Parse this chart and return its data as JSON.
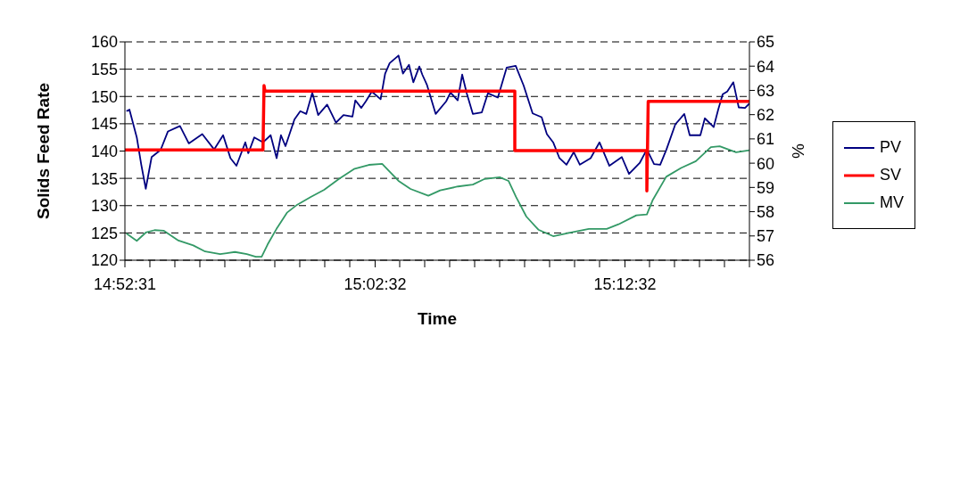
{
  "chart_data": {
    "type": "line",
    "xlabel": "Time",
    "ylabel": "Solids Feed Rate",
    "y2label": "%",
    "xlim": [
      14.875278,
      15.291944
    ],
    "xticks": [
      {
        "value": 14.875278,
        "label": "14:52:31"
      },
      {
        "value": 14.891944,
        "label": null
      },
      {
        "value": 14.908611,
        "label": null
      },
      {
        "value": 14.925278,
        "label": null
      },
      {
        "value": 14.941944,
        "label": null
      },
      {
        "value": 14.958611,
        "label": null
      },
      {
        "value": 14.975278,
        "label": null
      },
      {
        "value": 14.991944,
        "label": null
      },
      {
        "value": 15.008611,
        "label": null
      },
      {
        "value": 15.025278,
        "label": null
      },
      {
        "value": 15.042222,
        "label": "15:02:32"
      },
      {
        "value": 15.058611,
        "label": null
      },
      {
        "value": 15.075278,
        "label": null
      },
      {
        "value": 15.091944,
        "label": null
      },
      {
        "value": 15.108611,
        "label": null
      },
      {
        "value": 15.125278,
        "label": null
      },
      {
        "value": 15.141944,
        "label": null
      },
      {
        "value": 15.158611,
        "label": null
      },
      {
        "value": 15.175278,
        "label": null
      },
      {
        "value": 15.191944,
        "label": null
      },
      {
        "value": 15.208889,
        "label": "15:12:32"
      },
      {
        "value": 15.225278,
        "label": null
      },
      {
        "value": 15.241944,
        "label": null
      },
      {
        "value": 15.258611,
        "label": null
      },
      {
        "value": 15.275278,
        "label": null
      },
      {
        "value": 15.291944,
        "label": null
      }
    ],
    "ylim": [
      120,
      160
    ],
    "yticks": [
      120,
      125,
      130,
      135,
      140,
      145,
      150,
      155,
      160
    ],
    "y2lim": [
      56,
      65
    ],
    "y2ticks": [
      56,
      57,
      58,
      59,
      60,
      61,
      62,
      63,
      64,
      65
    ],
    "grid": "y",
    "legend": "right",
    "marker": "none",
    "line_style": "solid",
    "series": [
      {
        "name": "PV",
        "color": "#000080",
        "x": [
          14.8763,
          14.8783,
          14.8832,
          14.8862,
          14.8892,
          14.8931,
          14.8991,
          14.904,
          14.912,
          14.9179,
          14.9269,
          14.9348,
          14.9408,
          14.9457,
          14.9497,
          14.9556,
          14.9576,
          14.9616,
          14.9675,
          14.9725,
          14.9765,
          14.9794,
          14.9824,
          14.9884,
          14.9923,
          14.9963,
          15.0003,
          15.0042,
          15.0102,
          15.0161,
          15.0211,
          15.0271,
          15.029,
          15.033,
          15.036,
          15.04,
          15.0459,
          15.0489,
          15.0519,
          15.0578,
          15.0608,
          15.0648,
          15.0677,
          15.0717,
          15.0737,
          15.0767,
          15.0826,
          15.0896,
          15.0925,
          15.0973,
          15.1003,
          15.1033,
          15.1074,
          15.1134,
          15.1175,
          15.1241,
          15.13,
          15.136,
          15.1413,
          15.1473,
          15.1533,
          15.1568,
          15.161,
          15.1652,
          15.1699,
          15.1747,
          15.1788,
          15.186,
          15.1919,
          15.1985,
          15.2068,
          15.2116,
          15.2187,
          15.2235,
          15.2283,
          15.2324,
          15.2366,
          15.2425,
          15.2485,
          15.2521,
          15.2592,
          15.2622,
          15.2681,
          15.2711,
          15.2741,
          15.2771,
          15.2812,
          15.2848,
          15.289,
          15.2919
        ],
        "values": [
          147.3,
          147.6,
          142.5,
          137.5,
          133.1,
          138.9,
          140.2,
          143.6,
          144.6,
          141.4,
          143.1,
          140.3,
          142.9,
          138.7,
          137.3,
          141.6,
          139.6,
          142.5,
          141.6,
          142.9,
          138.7,
          142.9,
          140.9,
          145.8,
          147.3,
          146.8,
          150.7,
          146.6,
          148.5,
          145.2,
          146.6,
          146.3,
          149.3,
          147.9,
          149.1,
          150.9,
          149.5,
          154.2,
          156.1,
          157.5,
          154.2,
          155.8,
          152.6,
          155.5,
          154.0,
          152.2,
          146.8,
          149.1,
          150.7,
          149.3,
          154.0,
          150.6,
          146.8,
          147.1,
          150.6,
          149.8,
          155.3,
          155.6,
          152.0,
          146.9,
          146.2,
          143.1,
          141.6,
          138.7,
          137.5,
          139.8,
          137.5,
          138.7,
          141.6,
          137.3,
          138.9,
          135.8,
          137.8,
          140.3,
          137.6,
          137.5,
          140.3,
          144.9,
          146.8,
          142.9,
          142.9,
          146.0,
          144.4,
          147.6,
          150.4,
          150.9,
          152.6,
          148.0,
          147.9,
          148.7
        ]
      },
      {
        "name": "SV",
        "color": "#ff0000",
        "x": [
          14.8753,
          14.9674,
          14.9681,
          14.9687,
          15.1354,
          15.1354,
          15.2235,
          15.2235,
          15.2244,
          15.2919
        ],
        "values": [
          140.2,
          140.2,
          152.0,
          151.0,
          151.0,
          140.1,
          140.1,
          132.7,
          149.1,
          149.1
        ]
      },
      {
        "name": "MV",
        "color": "#339966",
        "axis": "y2",
        "x": [
          14.8763,
          14.8832,
          14.8892,
          14.8951,
          14.9011,
          14.911,
          14.9209,
          14.9288,
          14.9388,
          14.9487,
          14.9566,
          14.9626,
          14.9665,
          14.9705,
          14.9765,
          14.9834,
          14.9903,
          14.9993,
          15.0082,
          15.0181,
          15.0281,
          15.038,
          15.0469,
          15.0578,
          15.0658,
          15.0777,
          15.0856,
          15.0975,
          15.1074,
          15.1153,
          15.1253,
          15.1312,
          15.1362,
          15.1431,
          15.1511,
          15.161,
          15.1729,
          15.1848,
          15.1967,
          15.2046,
          15.2165,
          15.2235,
          15.2275,
          15.2364,
          15.2463,
          15.2562,
          15.2662,
          15.2721,
          15.283,
          15.2919
        ],
        "values": [
          57.1,
          56.8,
          57.14,
          57.24,
          57.22,
          56.81,
          56.61,
          56.36,
          56.25,
          56.34,
          56.25,
          56.14,
          56.14,
          56.65,
          57.3,
          57.96,
          58.29,
          58.61,
          58.9,
          59.35,
          59.76,
          59.93,
          59.97,
          59.27,
          58.94,
          58.66,
          58.88,
          59.04,
          59.12,
          59.35,
          59.42,
          59.27,
          58.61,
          57.8,
          57.26,
          56.99,
          57.14,
          57.29,
          57.29,
          57.48,
          57.85,
          57.89,
          58.49,
          59.44,
          59.8,
          60.08,
          60.66,
          60.7,
          60.45,
          60.53
        ]
      }
    ]
  }
}
